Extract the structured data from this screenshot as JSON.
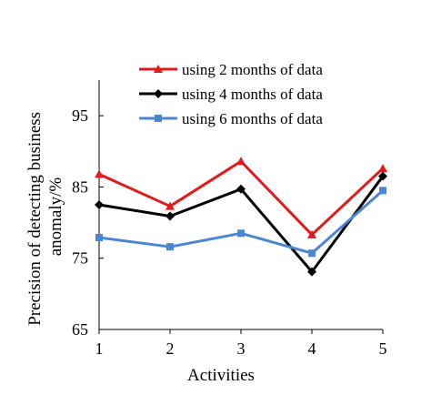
{
  "chart_data": {
    "type": "line",
    "title": "",
    "xlabel": "Activities",
    "ylabel_lines": [
      "Precision of detecting business",
      "anomaly/%"
    ],
    "x": [
      1,
      2,
      3,
      4,
      5
    ],
    "xlim": [
      1,
      5
    ],
    "ylim": [
      65,
      100
    ],
    "y_ticks": [
      65,
      75,
      85,
      95
    ],
    "grid": false,
    "legend_position": "top-right",
    "series": [
      {
        "name": "using 2 months of data",
        "color": "#e31a1c",
        "marker": "triangle",
        "values": [
          86.8,
          82.3,
          88.6,
          78.3,
          87.6
        ]
      },
      {
        "name": "using 4 months of data",
        "color": "#000000",
        "marker": "diamond",
        "values": [
          82.5,
          80.9,
          84.7,
          73.1,
          86.5
        ]
      },
      {
        "name": "using 6 months of data",
        "color": "#4a86d4",
        "marker": "square",
        "values": [
          77.9,
          76.6,
          78.5,
          75.7,
          84.5
        ]
      }
    ]
  }
}
